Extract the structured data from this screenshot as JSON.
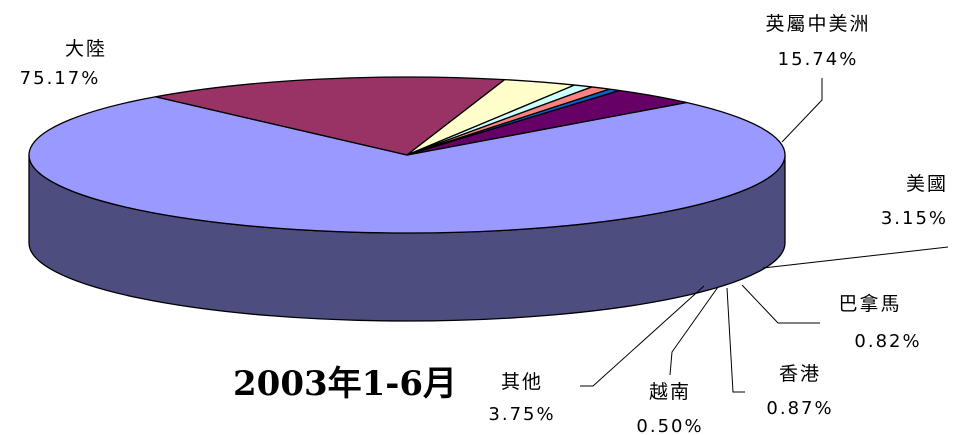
{
  "chart_data": {
    "type": "pie",
    "style": "3d",
    "title": "2003年1-6月",
    "slices": [
      {
        "name": "大陸",
        "value": 75.17,
        "label": "75.17%",
        "color": "#9999FF"
      },
      {
        "name": "英屬中美洲",
        "value": 15.74,
        "label": "15.74%",
        "color": "#993366"
      },
      {
        "name": "美國",
        "value": 3.15,
        "label": "3.15%",
        "color": "#FFFFCC"
      },
      {
        "name": "巴拿馬",
        "value": 0.82,
        "label": "0.82%",
        "color": "#CCFFFF"
      },
      {
        "name": "香港",
        "value": 0.87,
        "label": "0.87%",
        "color": "#FF8080"
      },
      {
        "name": "越南",
        "value": 0.5,
        "label": "0.50%",
        "color": "#0066CC"
      },
      {
        "name": "其他",
        "value": 3.75,
        "label": "3.75%",
        "color": "#660066"
      }
    ],
    "legend": "none"
  }
}
